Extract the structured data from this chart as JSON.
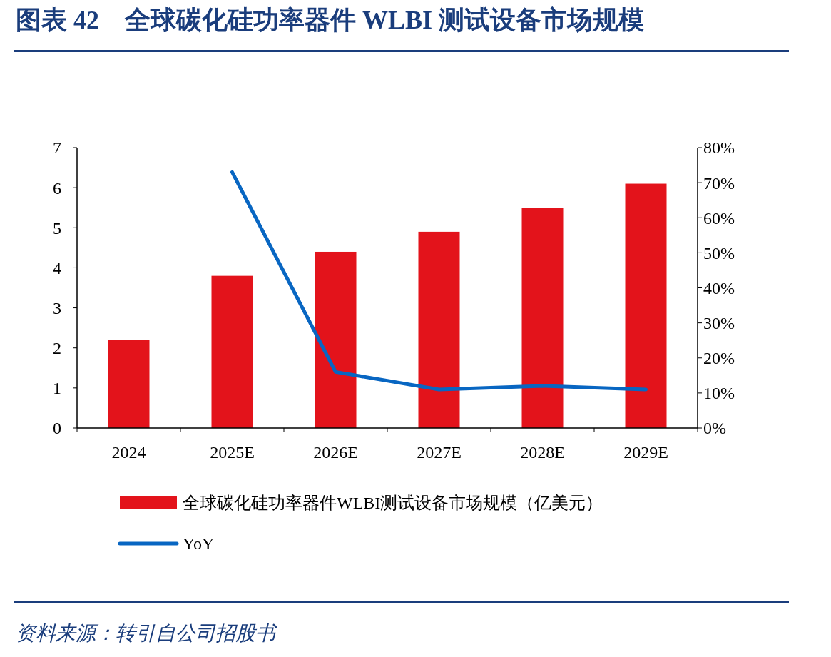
{
  "chart_data": {
    "type": "bar",
    "title": "图表 42　全球碳化硅功率器件 WLBI 测试设备市场规模",
    "categories": [
      "2024",
      "2025E",
      "2026E",
      "2027E",
      "2028E",
      "2029E"
    ],
    "series": [
      {
        "name": "全球碳化硅功率器件WLBI测试设备市场规模（亿美元）",
        "color": "#e3131b",
        "values": [
          2.2,
          3.8,
          4.4,
          4.9,
          5.5,
          6.1
        ]
      },
      {
        "name": "YoY",
        "type": "line",
        "axis": "y2",
        "color": "#0866c2",
        "values": [
          null,
          73,
          16,
          11,
          12,
          11
        ]
      }
    ],
    "ylim": [
      0,
      7
    ],
    "yticks": [
      0,
      1,
      2,
      3,
      4,
      5,
      6,
      7
    ],
    "y2lim": [
      0,
      80
    ],
    "y2ticks": [
      {
        "value": 0,
        "label": "0%"
      },
      {
        "value": 10,
        "label": "10%"
      },
      {
        "value": 20,
        "label": "20%"
      },
      {
        "value": 30,
        "label": "30%"
      },
      {
        "value": 40,
        "label": "40%"
      },
      {
        "value": 50,
        "label": "50%"
      },
      {
        "value": 60,
        "label": "60%"
      },
      {
        "value": 70,
        "label": "70%"
      },
      {
        "value": 80,
        "label": "80%"
      }
    ],
    "grid": false,
    "legend": "bottom",
    "marker": "none",
    "line_style": "solid",
    "annotations": [
      "资料来源：转引自公司招股书"
    ]
  }
}
